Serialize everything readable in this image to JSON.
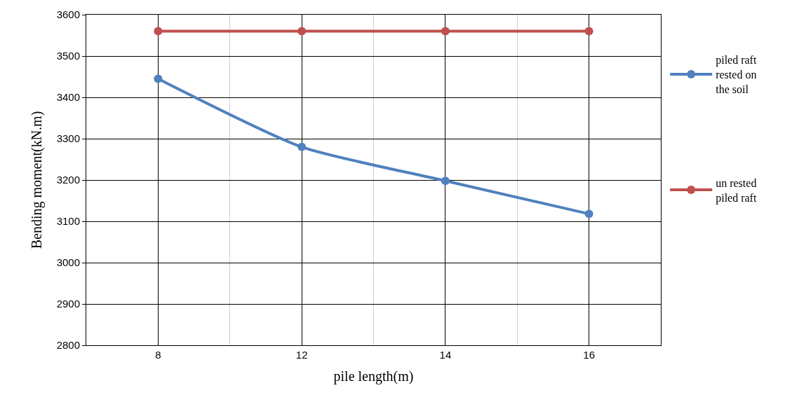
{
  "chart_data": {
    "type": "line",
    "xlabel": "pile length(m)",
    "ylabel": "Bending moment(kN.m)",
    "categories": [
      "8",
      "12",
      "14",
      "16"
    ],
    "series": [
      {
        "name": "piled raft rested on the soil",
        "color": "#4f81bd",
        "values": [
          3445,
          3280,
          3198,
          3118
        ]
      },
      {
        "name": "un rested piled raft",
        "color": "#c0504d",
        "values": [
          3560,
          3560,
          3560,
          3560
        ]
      }
    ],
    "ylim": [
      2800,
      3600
    ],
    "yticks": [
      2800,
      2900,
      3000,
      3100,
      3200,
      3300,
      3400,
      3500,
      3600
    ],
    "grid": true,
    "legend": "right",
    "marker": "circle",
    "line_style": "solid"
  }
}
